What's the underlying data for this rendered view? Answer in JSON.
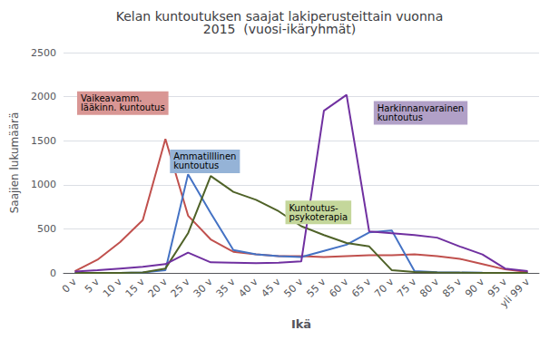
{
  "chart_data": {
    "type": "line",
    "title": "Kelan kuntoutuksen saajat lakiperusteittain vuonna\n2015  (vuosi-ikäryhmät)",
    "xlabel": "Ikä",
    "ylabel": "Saajien lukumäärä",
    "categories": [
      "0 v",
      "5 v",
      "10 v",
      "15 v",
      "20 v",
      "25 v",
      "30 v",
      "35 v",
      "40 v",
      "45 v",
      "50 v",
      "55 v",
      "60 v",
      "65 v",
      "70 v",
      "75 v",
      "80 v",
      "85 v",
      "90 v",
      "95 v",
      "yli 99 v"
    ],
    "series": [
      {
        "color": "#c0504d",
        "values": [
          20,
          150,
          350,
          600,
          1520,
          650,
          380,
          240,
          210,
          190,
          190,
          180,
          190,
          200,
          200,
          210,
          190,
          160,
          100,
          40,
          10
        ]
      },
      {
        "color": "#4472c4",
        "values": [
          0,
          0,
          0,
          5,
          30,
          1120,
          680,
          260,
          210,
          190,
          180,
          250,
          320,
          460,
          480,
          20,
          8,
          4,
          2,
          1,
          0
        ]
      },
      {
        "color": "#4f6228",
        "values": [
          0,
          0,
          0,
          5,
          50,
          450,
          1100,
          920,
          830,
          700,
          530,
          430,
          340,
          300,
          30,
          10,
          5,
          3,
          1,
          0,
          0
        ]
      },
      {
        "color": "#7030a0",
        "values": [
          15,
          30,
          50,
          70,
          100,
          230,
          120,
          115,
          110,
          115,
          130,
          1840,
          2020,
          470,
          450,
          430,
          400,
          300,
          210,
          50,
          20
        ]
      }
    ],
    "annotations": [
      {
        "text": "Vaikeavamm.\nlääkinn. kuntoutus",
        "x": 0.1,
        "y": 2060,
        "color": "#d99694"
      },
      {
        "text": "Ammatilllinen\nkuntoutus",
        "x": 4.2,
        "y": 1400,
        "color": "#95b3d7"
      },
      {
        "text": "Kuntoutus-\npsykoterapia",
        "x": 9.3,
        "y": 820,
        "color": "#c4d79b"
      },
      {
        "text": "Harkinnanvarainen\nkuntoutus",
        "x": 13.2,
        "y": 1950,
        "color": "#b1a0c7"
      }
    ],
    "ylim": [
      0,
      2500
    ],
    "yticks": [
      0,
      500,
      1000,
      1500,
      2000,
      2500
    ],
    "grid": true
  }
}
